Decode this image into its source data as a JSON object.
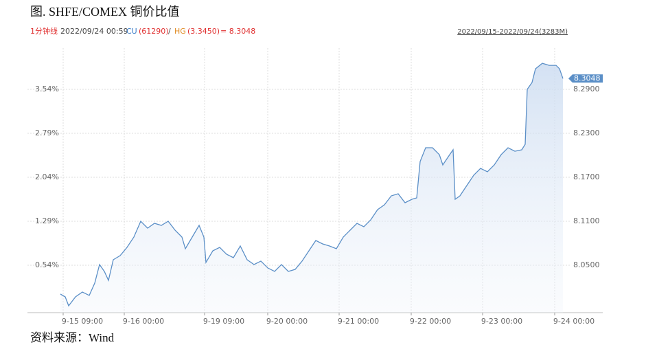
{
  "header": {
    "title": "图. SHFE/COMEX 铜价比值",
    "period": "1分钟线",
    "datetime": "2022/09/24 00:59",
    "cu_label": "CU",
    "cu_value": "(61290)",
    "separator": "/",
    "hg_label": "HG",
    "hg_value": "(3.3450)",
    "result": "= 8.3048",
    "range": "2022/09/15-2022/09/24(3283M)"
  },
  "chart_data": {
    "type": "line",
    "x": [
      0,
      7,
      12,
      22,
      32,
      42,
      50,
      57,
      64,
      70,
      77,
      87,
      97,
      107,
      117,
      127,
      137,
      147,
      157,
      167,
      177,
      182,
      192,
      202,
      209,
      212,
      222,
      232,
      242,
      252,
      262,
      272,
      282,
      292,
      302,
      312,
      322,
      332,
      342,
      352,
      362,
      372,
      382,
      392,
      402,
      412,
      422,
      432,
      442,
      452,
      462,
      472,
      482,
      492,
      502,
      512,
      519,
      524,
      532,
      542,
      552,
      557,
      567,
      572,
      575,
      582,
      592,
      602,
      612,
      622,
      632,
      642,
      652,
      662,
      672,
      677,
      680,
      687,
      692,
      702,
      712,
      722,
      727,
      732
    ],
    "series": [
      {
        "name": "SHFE/COMEX",
        "color": "#5b8fc7",
        "values": [
          8.0106,
          8.0069,
          7.9947,
          8.0069,
          8.0134,
          8.0088,
          8.0256,
          8.0509,
          8.0416,
          8.0294,
          8.0575,
          8.0631,
          8.0744,
          8.0884,
          8.11,
          8.1006,
          8.1072,
          8.1044,
          8.11,
          8.0978,
          8.0884,
          8.0725,
          8.0884,
          8.1044,
          8.0884,
          8.0538,
          8.0697,
          8.0744,
          8.065,
          8.0603,
          8.0763,
          8.0575,
          8.0509,
          8.0556,
          8.0463,
          8.0416,
          8.0509,
          8.0416,
          8.0444,
          8.0556,
          8.0697,
          8.0838,
          8.0791,
          8.0763,
          8.0725,
          8.0884,
          8.0978,
          8.1072,
          8.1025,
          8.1119,
          8.1259,
          8.1325,
          8.1447,
          8.1475,
          8.1353,
          8.14,
          8.1419,
          8.1916,
          8.2103,
          8.2103,
          8.2009,
          8.1869,
          8.2009,
          8.2075,
          8.14,
          8.1447,
          8.1588,
          8.1728,
          8.1822,
          8.1775,
          8.1869,
          8.2009,
          8.2103,
          8.2056,
          8.2075,
          8.215,
          8.29,
          8.2994,
          8.3181,
          8.3256,
          8.3228,
          8.3228,
          8.3181,
          8.3048
        ]
      }
    ],
    "xlim": [
      0,
      742
    ],
    "xticks": [
      {
        "value": 4,
        "label": "9-15 09:00"
      },
      {
        "value": 93,
        "label": "9-16 00:00"
      },
      {
        "value": 210,
        "label": "9-19 09:00"
      },
      {
        "value": 302,
        "label": "9-20 00:00"
      },
      {
        "value": 406,
        "label": "9-21 00:00"
      },
      {
        "value": 511,
        "label": "9-22 00:00"
      },
      {
        "value": 615,
        "label": "9-23 00:00"
      },
      {
        "value": 720,
        "label": "9-24 00:00"
      }
    ],
    "ylim": [
      7.9853,
      8.3463
    ],
    "yticks": [
      {
        "value": 8.05,
        "label": "8.0500"
      },
      {
        "value": 8.11,
        "label": "8.1100"
      },
      {
        "value": 8.17,
        "label": "8.1700"
      },
      {
        "value": 8.23,
        "label": "8.2300"
      },
      {
        "value": 8.29,
        "label": "8.2900"
      }
    ],
    "y2lim": [
      -0.269,
      4.243
    ],
    "y2ticks": [
      {
        "value": 0.54,
        "label": "0.54%"
      },
      {
        "value": 1.29,
        "label": "1.29%"
      },
      {
        "value": 2.04,
        "label": "2.04%"
      },
      {
        "value": 2.79,
        "label": "2.79%"
      },
      {
        "value": 3.54,
        "label": "3.54%"
      }
    ],
    "grid": true
  },
  "footer": {
    "source": "资料来源：Wind"
  }
}
